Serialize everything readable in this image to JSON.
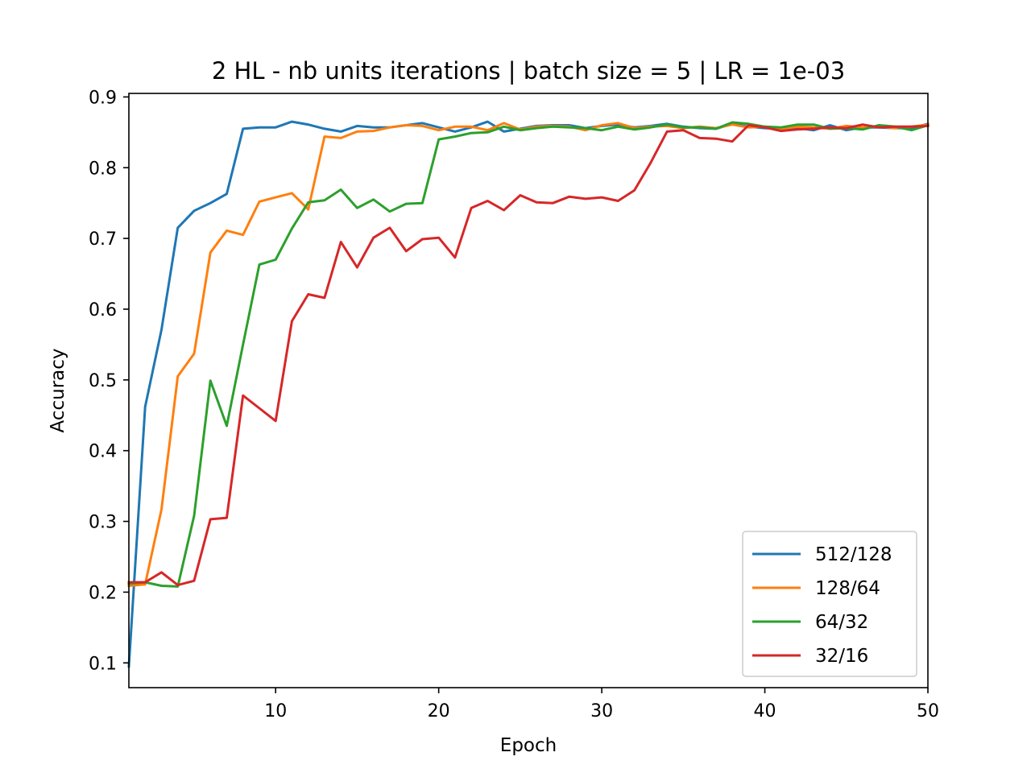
{
  "chart_data": {
    "type": "line",
    "title": "2 HL - nb units iterations | batch size = 5 | LR = 1e-03",
    "xlabel": "Epoch",
    "ylabel": "Accuracy",
    "xlim": [
      1,
      50
    ],
    "ylim": [
      0.065,
      0.905
    ],
    "x_ticks": [
      10,
      20,
      30,
      40,
      50
    ],
    "y_ticks": [
      0.1,
      0.2,
      0.3,
      0.4,
      0.5,
      0.6,
      0.7,
      0.8,
      0.9
    ],
    "x_tick_labels": [
      "10",
      "20",
      "30",
      "40",
      "50"
    ],
    "y_tick_labels": [
      "0.1",
      "0.2",
      "0.3",
      "0.4",
      "0.5",
      "0.6",
      "0.7",
      "0.8",
      "0.9"
    ],
    "grid": false,
    "legend_position": "lower-right",
    "x": [
      1,
      2,
      3,
      4,
      5,
      6,
      7,
      8,
      9,
      10,
      11,
      12,
      13,
      14,
      15,
      16,
      17,
      18,
      19,
      20,
      21,
      22,
      23,
      24,
      25,
      26,
      27,
      28,
      29,
      30,
      31,
      32,
      33,
      34,
      35,
      36,
      37,
      38,
      39,
      40,
      41,
      42,
      43,
      44,
      45,
      46,
      47,
      48,
      49,
      50
    ],
    "series": [
      {
        "name": "512/128",
        "color": "#1f77b4",
        "values": [
          0.095,
          0.462,
          0.571,
          0.715,
          0.739,
          0.75,
          0.763,
          0.855,
          0.857,
          0.857,
          0.865,
          0.861,
          0.855,
          0.851,
          0.859,
          0.857,
          0.857,
          0.86,
          0.863,
          0.857,
          0.851,
          0.857,
          0.865,
          0.851,
          0.855,
          0.859,
          0.86,
          0.86,
          0.856,
          0.859,
          0.861,
          0.857,
          0.859,
          0.862,
          0.858,
          0.856,
          0.855,
          0.862,
          0.858,
          0.856,
          0.855,
          0.856,
          0.853,
          0.86,
          0.853,
          0.857,
          0.857,
          0.856,
          0.856,
          0.862
        ]
      },
      {
        "name": "128/64",
        "color": "#ff7f0e",
        "values": [
          0.209,
          0.211,
          0.317,
          0.505,
          0.537,
          0.68,
          0.711,
          0.705,
          0.752,
          0.758,
          0.764,
          0.741,
          0.844,
          0.842,
          0.851,
          0.852,
          0.857,
          0.86,
          0.859,
          0.853,
          0.858,
          0.858,
          0.853,
          0.863,
          0.854,
          0.858,
          0.859,
          0.858,
          0.853,
          0.86,
          0.863,
          0.856,
          0.858,
          0.859,
          0.856,
          0.858,
          0.856,
          0.861,
          0.857,
          0.858,
          0.855,
          0.858,
          0.857,
          0.855,
          0.859,
          0.857,
          0.858,
          0.856,
          0.858,
          0.861
        ]
      },
      {
        "name": "64/32",
        "color": "#2ca02c",
        "values": [
          0.212,
          0.214,
          0.209,
          0.208,
          0.308,
          0.499,
          0.435,
          0.55,
          0.663,
          0.67,
          0.714,
          0.751,
          0.754,
          0.769,
          0.743,
          0.755,
          0.738,
          0.749,
          0.75,
          0.84,
          0.844,
          0.849,
          0.85,
          0.858,
          0.853,
          0.856,
          0.858,
          0.857,
          0.856,
          0.853,
          0.858,
          0.854,
          0.857,
          0.861,
          0.857,
          0.857,
          0.855,
          0.864,
          0.862,
          0.858,
          0.857,
          0.861,
          0.861,
          0.855,
          0.856,
          0.854,
          0.86,
          0.858,
          0.853,
          0.86
        ]
      },
      {
        "name": "32/16",
        "color": "#d62728",
        "values": [
          0.214,
          0.214,
          0.228,
          0.21,
          0.216,
          0.303,
          0.305,
          0.478,
          0.46,
          0.442,
          0.583,
          0.621,
          0.616,
          0.695,
          0.659,
          0.701,
          0.715,
          0.682,
          0.699,
          0.701,
          0.673,
          0.743,
          0.753,
          0.74,
          0.761,
          0.751,
          0.75,
          0.759,
          0.756,
          0.758,
          0.753,
          0.768,
          0.807,
          0.851,
          0.853,
          0.842,
          0.841,
          0.837,
          0.86,
          0.857,
          0.852,
          0.854,
          0.855,
          0.857,
          0.856,
          0.861,
          0.857,
          0.858,
          0.858,
          0.859
        ]
      }
    ]
  }
}
